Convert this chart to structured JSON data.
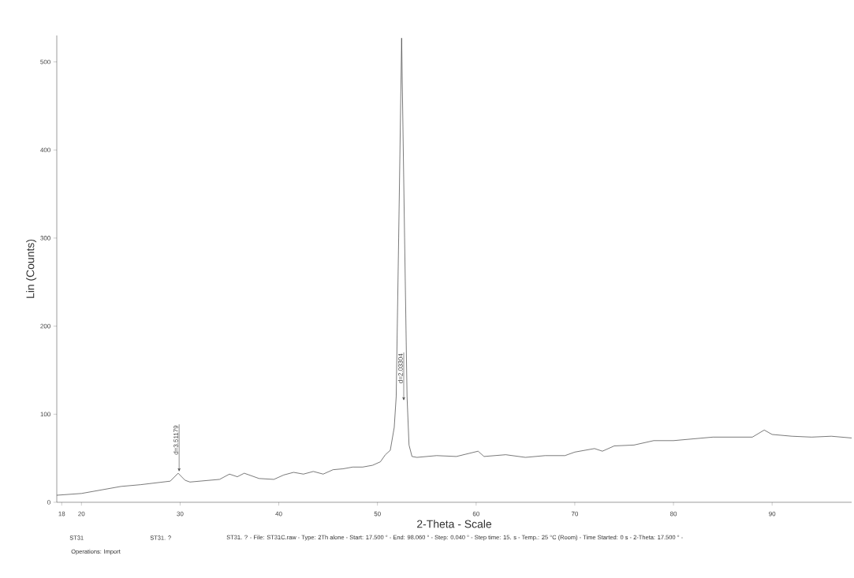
{
  "chart_data": {
    "type": "line",
    "xlabel": "2-Theta - Scale",
    "ylabel": "Lin (Counts)",
    "x": [
      17.5,
      20,
      24,
      26,
      29,
      29.8,
      30.5,
      31,
      34,
      35,
      35.8,
      36.5,
      38,
      39.5,
      40.5,
      41.5,
      42.5,
      43.5,
      44.5,
      45.5,
      46.5,
      47.5,
      48.5,
      49.5,
      50.3,
      50.8,
      51.3,
      51.7,
      51.9,
      52.15,
      52.45,
      52.75,
      53.0,
      53.2,
      53.5,
      54,
      56,
      58,
      60.2,
      60.8,
      63,
      65,
      67,
      69,
      70,
      72,
      72.8,
      74,
      76,
      78,
      80,
      82,
      84,
      86,
      88,
      89.2,
      90,
      92,
      94,
      96,
      98.06
    ],
    "series": [
      {
        "color": "#404040",
        "values": [
          8,
          10,
          18,
          20,
          24,
          33,
          25,
          23,
          26,
          32,
          29,
          33,
          27,
          26,
          31,
          34,
          32,
          35,
          32,
          37,
          38,
          40,
          40,
          42,
          46,
          54,
          59,
          85,
          120,
          300,
          527,
          300,
          120,
          65,
          52,
          51,
          53,
          52,
          58,
          52,
          54,
          51,
          53,
          53,
          57,
          61,
          58,
          64,
          65,
          70,
          70,
          72,
          74,
          74,
          74,
          82,
          77,
          75,
          74,
          75,
          73
        ]
      }
    ],
    "xlim": [
      17.5,
      98.06
    ],
    "ylim": [
      0,
      530
    ],
    "xticks": [
      18,
      20,
      30,
      40,
      50,
      60,
      70,
      80,
      90
    ],
    "yticks": [
      0,
      100,
      200,
      300,
      400,
      500
    ],
    "grid": false,
    "marker": "none",
    "line_style": "solid",
    "annotations": [
      {
        "text": "d=3.51179",
        "x": 29.9,
        "y": 33
      },
      "d=2.03304",
      "ST31",
      "ST31. ?",
      "ST31. ? - File: ST31C.raw - Type: 2Th alone - Start: 17.500 ° - End: 98.060 ° - Step: 0.040 ° - Step time: 15. s - Temp.: 25 °C (Room) - Time Started: 0 s - 2-Theta: 17.500 ° -",
      "Operations: Import"
    ]
  }
}
